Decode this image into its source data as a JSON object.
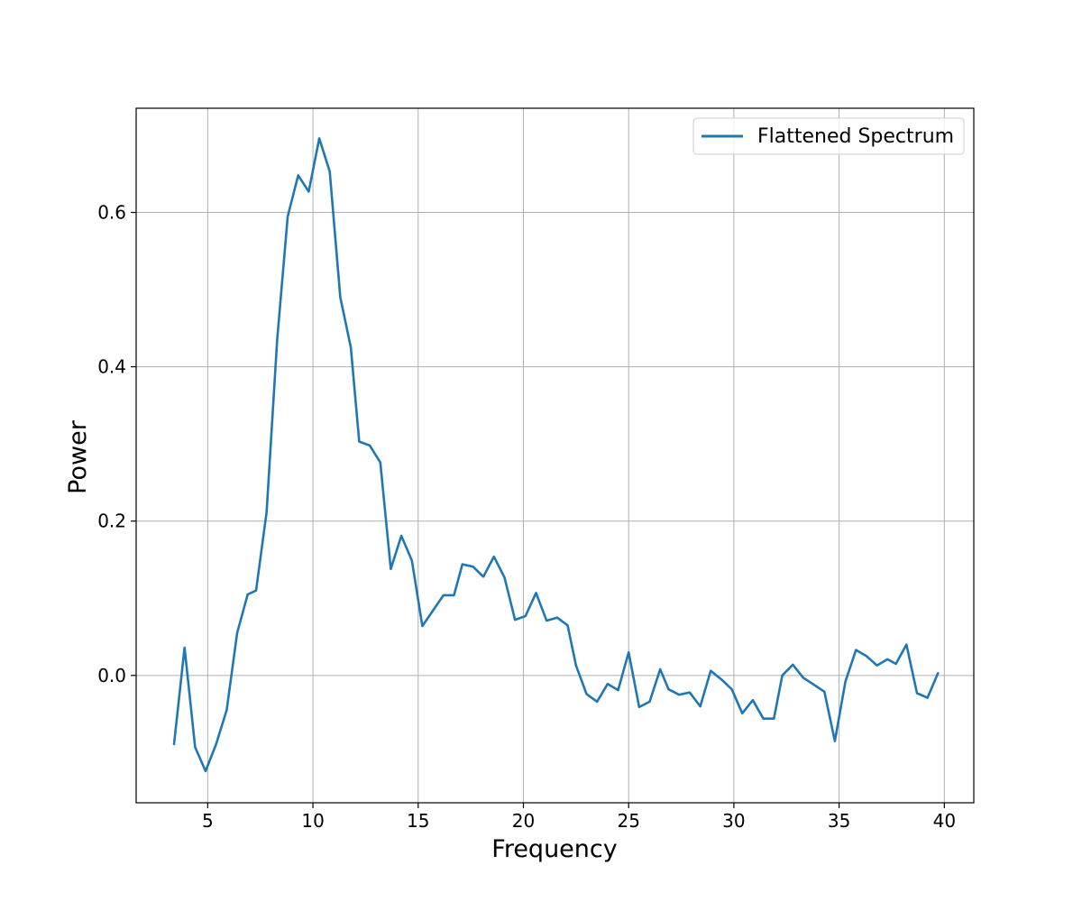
{
  "chart_data": {
    "type": "line",
    "title": "",
    "xlabel": "Frequency",
    "ylabel": "Power",
    "xlim": [
      1.6,
      41.4
    ],
    "ylim": [
      -0.165,
      0.735
    ],
    "xticks": [
      5,
      10,
      15,
      20,
      25,
      30,
      35,
      40
    ],
    "yticks": [
      0.0,
      0.2,
      0.4,
      0.6
    ],
    "ytick_labels": [
      "0.0",
      "0.2",
      "0.4",
      "0.6"
    ],
    "grid": true,
    "legend_position": "top-right",
    "colors": {
      "series": "#1f77b4",
      "grid": "#b0b0b0",
      "frame": "#000000"
    },
    "series": [
      {
        "name": "Flattened Spectrum",
        "x": [
          3.4,
          3.9,
          4.4,
          4.9,
          5.4,
          5.9,
          6.4,
          6.9,
          7.3,
          7.8,
          8.3,
          8.8,
          9.3,
          9.8,
          10.3,
          10.8,
          11.3,
          11.8,
          12.2,
          12.7,
          13.2,
          13.7,
          14.2,
          14.7,
          15.2,
          15.7,
          16.2,
          16.7,
          17.1,
          17.6,
          18.1,
          18.6,
          19.1,
          19.6,
          20.1,
          20.6,
          21.1,
          21.6,
          22.1,
          22.5,
          23.0,
          23.5,
          24.0,
          24.5,
          25.0,
          25.5,
          26.0,
          26.5,
          26.9,
          27.4,
          27.9,
          28.4,
          28.9,
          29.4,
          29.9,
          30.4,
          30.9,
          31.4,
          31.9,
          32.3,
          32.8,
          33.3,
          33.8,
          34.3,
          34.8,
          35.3,
          35.8,
          36.3,
          36.8,
          37.3,
          37.7,
          38.2,
          38.7,
          39.2,
          39.7
        ],
        "values": [
          -0.089,
          0.036,
          -0.093,
          -0.124,
          -0.089,
          -0.045,
          0.055,
          0.105,
          0.11,
          0.212,
          0.435,
          0.595,
          0.648,
          0.627,
          0.696,
          0.653,
          0.49,
          0.425,
          0.303,
          0.298,
          0.276,
          0.138,
          0.181,
          0.149,
          0.064,
          0.084,
          0.104,
          0.104,
          0.144,
          0.141,
          0.128,
          0.154,
          0.127,
          0.072,
          0.077,
          0.107,
          0.071,
          0.075,
          0.065,
          0.013,
          -0.024,
          -0.034,
          -0.011,
          -0.019,
          0.03,
          -0.041,
          -0.034,
          0.008,
          -0.018,
          -0.025,
          -0.022,
          -0.04,
          0.006,
          -0.005,
          -0.018,
          -0.049,
          -0.032,
          -0.056,
          -0.056,
          0.0,
          0.014,
          -0.003,
          -0.012,
          -0.021,
          -0.085,
          -0.008,
          0.033,
          0.025,
          0.013,
          0.021,
          0.015,
          0.04,
          -0.023,
          -0.029,
          0.003
        ]
      }
    ]
  }
}
